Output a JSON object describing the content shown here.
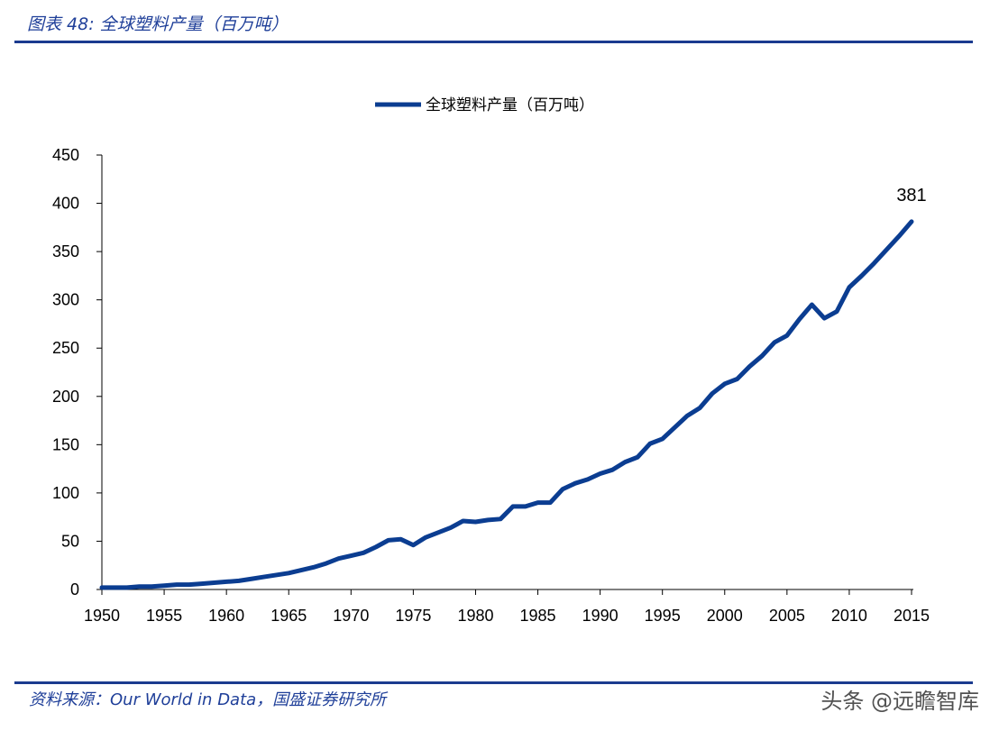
{
  "header": {
    "title": "图表 48:  全球塑料产量（百万吨）"
  },
  "footer": {
    "source": "资料来源：Our World in Data，国盛证券研究所",
    "watermark": "头条 @远瞻智库"
  },
  "chart_data": {
    "type": "line",
    "title": "",
    "xlabel": "",
    "ylabel": "",
    "xlim": [
      1950,
      2015
    ],
    "ylim": [
      0,
      450
    ],
    "x_ticks": [
      1950,
      1955,
      1960,
      1965,
      1970,
      1975,
      1980,
      1985,
      1990,
      1995,
      2000,
      2005,
      2010,
      2015
    ],
    "y_ticks": [
      0,
      50,
      100,
      150,
      200,
      250,
      300,
      350,
      400,
      450
    ],
    "grid": false,
    "legend_position": "top-center",
    "color": "#0b3d91",
    "series": [
      {
        "name": "全球塑料产量（百万吨）",
        "x": [
          1950,
          1951,
          1952,
          1953,
          1954,
          1955,
          1956,
          1957,
          1958,
          1959,
          1960,
          1961,
          1962,
          1963,
          1964,
          1965,
          1966,
          1967,
          1968,
          1969,
          1970,
          1971,
          1972,
          1973,
          1974,
          1975,
          1976,
          1977,
          1978,
          1979,
          1980,
          1981,
          1982,
          1983,
          1984,
          1985,
          1986,
          1987,
          1988,
          1989,
          1990,
          1991,
          1992,
          1993,
          1994,
          1995,
          1996,
          1997,
          1998,
          1999,
          2000,
          2001,
          2002,
          2003,
          2004,
          2005,
          2006,
          2007,
          2008,
          2009,
          2010,
          2011,
          2012,
          2013,
          2014,
          2015
        ],
        "values": [
          2,
          2,
          2,
          3,
          3,
          4,
          5,
          5,
          6,
          7,
          8,
          9,
          11,
          13,
          15,
          17,
          20,
          23,
          27,
          32,
          35,
          38,
          44,
          51,
          52,
          46,
          54,
          59,
          64,
          71,
          70,
          72,
          73,
          86,
          86,
          90,
          90,
          104,
          110,
          114,
          120,
          124,
          132,
          137,
          151,
          156,
          168,
          180,
          188,
          203,
          213,
          218,
          231,
          242,
          256,
          263,
          280,
          295,
          281,
          288,
          313,
          325,
          338,
          352,
          366,
          381
        ]
      }
    ],
    "annotations": [
      {
        "x": 2015,
        "y": 381,
        "text": "381"
      }
    ]
  }
}
